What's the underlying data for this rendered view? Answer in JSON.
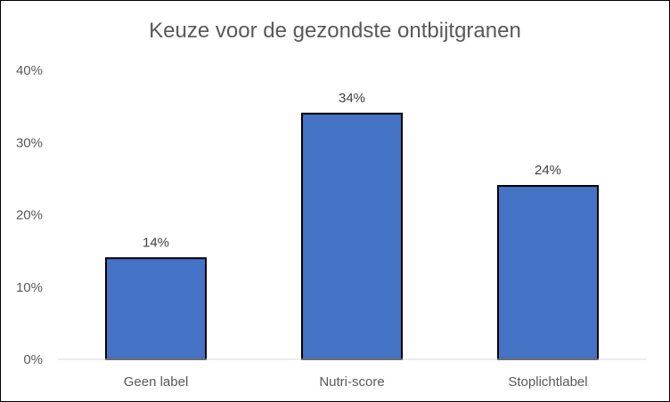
{
  "chart_data": {
    "type": "bar",
    "title": "Keuze voor de gezondste ontbijtgranen",
    "categories": [
      "Geen label",
      "Nutri-score",
      "Stoplichtlabel"
    ],
    "values": [
      14,
      34,
      24
    ],
    "data_labels": [
      "14%",
      "34%",
      "24%"
    ],
    "ylim": [
      0,
      40
    ],
    "yticks": [
      0,
      10,
      20,
      30,
      40
    ],
    "ytick_labels": [
      "0%",
      "10%",
      "20%",
      "30%",
      "40%"
    ],
    "xlabel": "",
    "ylabel": "",
    "grid": false,
    "legend": "none",
    "colors": {
      "bar": "#4472C4",
      "bar_edge": "#000000",
      "text": "#595959",
      "axis": "#D9D9D9"
    }
  }
}
